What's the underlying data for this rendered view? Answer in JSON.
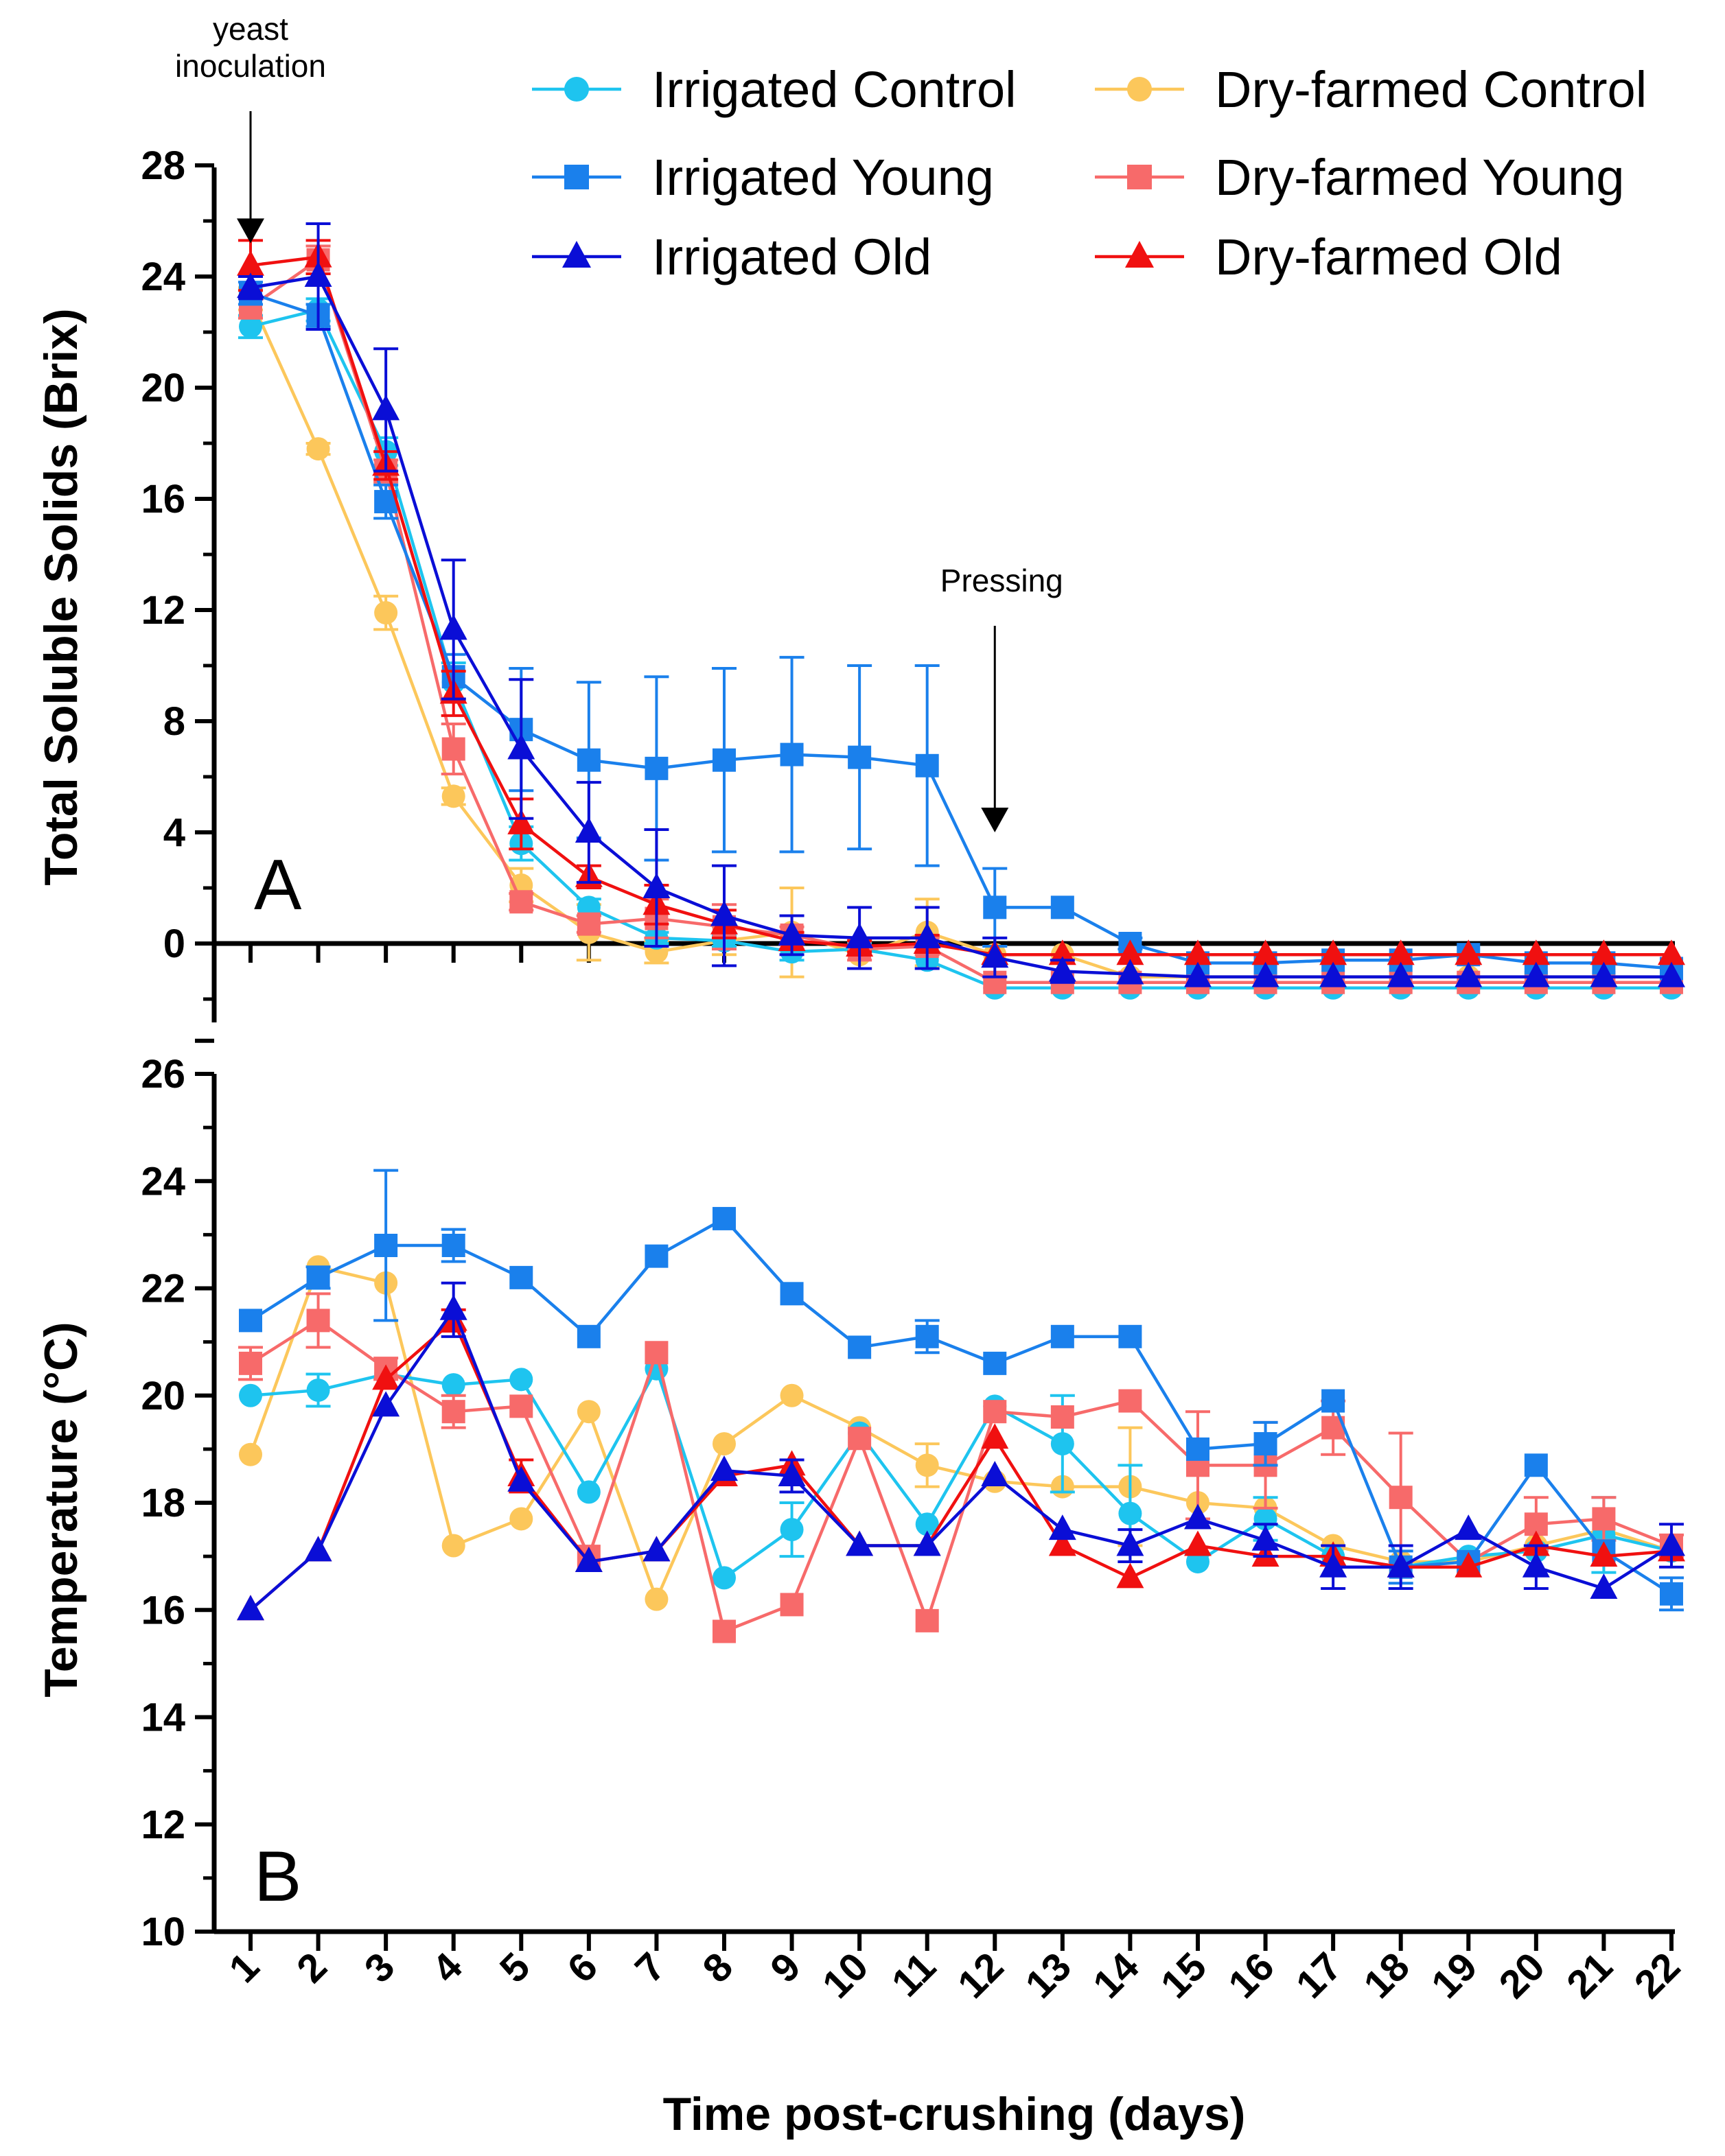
{
  "chart_data": {
    "type": "line",
    "xlabel": "Time post-crushing (days)",
    "x": [
      1,
      2,
      3,
      4,
      5,
      6,
      7,
      8,
      9,
      10,
      11,
      12,
      13,
      14,
      15,
      16,
      17,
      18,
      19,
      20,
      21,
      22
    ],
    "x_tick_labels": [
      "1",
      "2",
      "3",
      "4",
      "5",
      "6",
      "7",
      "8",
      "9",
      "10",
      "11",
      "12",
      "13",
      "14",
      "15",
      "16",
      "17",
      "18",
      "19",
      "20",
      "21",
      "22"
    ],
    "legend": [
      {
        "name": "Irrigated Control",
        "color": "#1ec4ef",
        "marker": "circle"
      },
      {
        "name": "Dry-farmed Control",
        "color": "#fcc75b",
        "marker": "circle"
      },
      {
        "name": "Irrigated Young",
        "color": "#1a80ec",
        "marker": "square"
      },
      {
        "name": "Dry-farmed Young",
        "color": "#f76a6a",
        "marker": "square"
      },
      {
        "name": "Irrigated Old",
        "color": "#0a0ed6",
        "marker": "triangle"
      },
      {
        "name": "Dry-farmed Old",
        "color": "#f01010",
        "marker": "triangle"
      }
    ],
    "panels": [
      {
        "id": "A",
        "label": "A",
        "ylabel": "Total Soluble Solids (Brix)",
        "ylim": [
          -3.5,
          28
        ],
        "y_ticks": [
          "0",
          "4",
          "8",
          "12",
          "16",
          "20",
          "24",
          "28"
        ],
        "annotations": [
          {
            "text_lines": [
              "yeast",
              "inoculation"
            ],
            "x": 1,
            "arrow_to_y": 25.2
          },
          {
            "text_lines": [
              "Pressing"
            ],
            "x": 12,
            "arrow_to_y": 4.0
          }
        ],
        "series": [
          {
            "name": "Irrigated Control",
            "values": [
              22.2,
              22.8,
              17.7,
              9.4,
              3.6,
              1.3,
              0.2,
              0.1,
              -0.3,
              -0.2,
              -0.6,
              -1.6,
              -1.6,
              -1.6,
              -1.6,
              -1.6,
              -1.6,
              -1.6,
              -1.6,
              -1.6,
              -1.6,
              -1.6
            ],
            "errors": [
              0.4,
              0.4,
              0.5,
              0.7,
              0.6,
              0.3,
              0.2,
              0.2,
              0.3,
              0.2,
              0.1,
              0.1,
              0.1,
              0.1,
              0.1,
              0.1,
              0.1,
              0.1,
              0.1,
              0.1,
              0.1,
              0.1
            ]
          },
          {
            "name": "Dry-farmed Control",
            "values": [
              23.2,
              17.8,
              11.9,
              5.3,
              2.1,
              0.4,
              -0.3,
              0.1,
              0.4,
              -0.4,
              0.4,
              -0.4,
              -0.4,
              -1.2,
              -1.2,
              -1.2,
              -1.2,
              -1.2,
              -1.2,
              -1.2,
              -1.2,
              -1.2
            ],
            "errors": [
              0.4,
              0.2,
              0.6,
              0.3,
              0.6,
              1.0,
              0.4,
              0.5,
              1.6,
              0.5,
              1.2,
              0.3,
              0.1,
              0.1,
              0.1,
              0.1,
              0.1,
              0.1,
              0.1,
              0.1,
              0.1,
              0.1
            ]
          },
          {
            "name": "Irrigated Young",
            "values": [
              23.4,
              22.6,
              15.9,
              9.6,
              7.7,
              6.6,
              6.3,
              6.6,
              6.8,
              6.7,
              6.4,
              1.3,
              1.3,
              0.0,
              -0.7,
              -0.7,
              -0.6,
              -0.6,
              -0.4,
              -0.7,
              -0.7,
              -0.9
            ],
            "errors": [
              0.4,
              0.4,
              0.6,
              0.8,
              2.2,
              2.8,
              3.3,
              3.3,
              3.5,
              3.3,
              3.6,
              1.4,
              0.1,
              0.2,
              0.1,
              0.1,
              0.1,
              0.1,
              0.1,
              0.1,
              0.1,
              0.1
            ]
          },
          {
            "name": "Dry-farmed Young",
            "values": [
              22.9,
              24.6,
              17.0,
              7.0,
              1.5,
              0.7,
              0.9,
              0.6,
              0.3,
              -0.2,
              -0.1,
              -1.4,
              -1.4,
              -1.4,
              -1.4,
              -1.4,
              -1.4,
              -1.4,
              -1.4,
              -1.4,
              -1.4,
              -1.4
            ],
            "errors": [
              0.4,
              0.5,
              0.4,
              0.9,
              0.3,
              0.3,
              0.7,
              0.8,
              0.3,
              0.4,
              0.3,
              0.1,
              0.1,
              0.1,
              0.1,
              0.1,
              0.1,
              0.1,
              0.1,
              0.1,
              0.1,
              0.1
            ]
          },
          {
            "name": "Irrigated Old",
            "values": [
              23.6,
              24.0,
              19.2,
              11.3,
              7.0,
              4.0,
              2.0,
              1.0,
              0.3,
              0.2,
              0.2,
              -0.5,
              -1.0,
              -1.1,
              -1.2,
              -1.2,
              -1.2,
              -1.2,
              -1.2,
              -1.2,
              -1.2,
              -1.2
            ],
            "errors": [
              0.4,
              1.9,
              2.2,
              2.5,
              2.5,
              1.8,
              2.1,
              1.8,
              0.7,
              1.1,
              1.1,
              0.7,
              0.4,
              0.1,
              0.1,
              0.1,
              0.1,
              0.1,
              0.1,
              0.1,
              0.1,
              0.1
            ]
          },
          {
            "name": "Dry-farmed Old",
            "values": [
              24.4,
              24.7,
              17.2,
              9.0,
              4.3,
              2.4,
              1.4,
              0.7,
              0.1,
              -0.1,
              0.0,
              -0.4,
              -0.4,
              -0.4,
              -0.4,
              -0.4,
              -0.4,
              -0.4,
              -0.4,
              -0.4,
              -0.4,
              -0.4
            ],
            "errors": [
              0.9,
              0.6,
              0.5,
              0.8,
              0.9,
              0.4,
              0.7,
              0.5,
              0.3,
              0.2,
              0.3,
              0.1,
              0.1,
              0.1,
              0.1,
              0.1,
              0.1,
              0.1,
              0.1,
              0.1,
              0.1,
              0.1
            ]
          }
        ]
      },
      {
        "id": "B",
        "label": "B",
        "ylabel": "Temperature (°C)",
        "ylim": [
          10,
          26
        ],
        "y_ticks": [
          "10",
          "12",
          "14",
          "16",
          "18",
          "20",
          "22",
          "24",
          "26"
        ],
        "series": [
          {
            "name": "Irrigated Control",
            "values": [
              20.0,
              20.1,
              20.4,
              20.2,
              20.3,
              18.2,
              20.5,
              16.6,
              17.5,
              19.3,
              17.6,
              19.8,
              19.1,
              17.8,
              16.9,
              17.7,
              17.0,
              16.8,
              17.0,
              17.1,
              17.4,
              17.1
            ],
            "errors": [
              0.1,
              0.3,
              0.1,
              0.1,
              0.1,
              0.1,
              0.1,
              0.1,
              0.5,
              0.1,
              0.1,
              0.1,
              0.9,
              0.9,
              0.1,
              0.4,
              0.1,
              0.1,
              0.1,
              0.1,
              0.7,
              0.1
            ]
          },
          {
            "name": "Dry-farmed Control",
            "values": [
              18.9,
              22.4,
              22.1,
              17.2,
              17.7,
              19.7,
              16.2,
              19.1,
              20.0,
              19.4,
              18.7,
              18.4,
              18.3,
              18.3,
              18.0,
              17.9,
              17.2,
              16.9,
              16.9,
              17.2,
              17.5,
              17.1
            ],
            "errors": [
              0.1,
              0.1,
              0.1,
              0.1,
              0.1,
              0.1,
              0.1,
              0.1,
              0.1,
              0.1,
              0.4,
              0.1,
              0.1,
              1.1,
              0.1,
              0.1,
              0.1,
              0.1,
              0.1,
              0.1,
              0.1,
              0.1
            ]
          },
          {
            "name": "Irrigated Young",
            "values": [
              21.4,
              22.2,
              22.8,
              22.8,
              22.2,
              21.1,
              22.6,
              23.3,
              21.9,
              20.9,
              21.1,
              20.6,
              21.1,
              21.1,
              19.0,
              19.1,
              19.9,
              16.8,
              16.9,
              18.7,
              17.1,
              16.3
            ],
            "errors": [
              0.1,
              0.2,
              1.4,
              0.3,
              0.1,
              0.1,
              0.1,
              0.1,
              0.1,
              0.1,
              0.3,
              0.1,
              0.1,
              0.1,
              0.1,
              0.4,
              0.1,
              0.3,
              0.1,
              0.1,
              0.1,
              0.3
            ]
          },
          {
            "name": "Dry-farmed Young",
            "values": [
              20.6,
              21.4,
              20.5,
              19.7,
              19.8,
              17.0,
              20.8,
              15.6,
              16.1,
              19.2,
              15.8,
              19.7,
              19.6,
              19.9,
              18.7,
              18.7,
              19.4,
              18.1,
              16.9,
              17.6,
              17.7,
              17.2
            ],
            "errors": [
              0.3,
              0.5,
              0.2,
              0.3,
              0.1,
              0.1,
              0.1,
              0.1,
              0.1,
              0.1,
              0.1,
              0.1,
              0.1,
              0.1,
              1.0,
              0.8,
              0.5,
              1.2,
              0.1,
              0.5,
              0.4,
              0.2
            ]
          },
          {
            "name": "Irrigated Old",
            "values": [
              16.0,
              17.1,
              19.8,
              21.6,
              18.4,
              16.9,
              17.1,
              18.6,
              18.5,
              17.2,
              17.2,
              18.5,
              17.5,
              17.2,
              17.7,
              17.3,
              16.8,
              16.8,
              17.5,
              16.8,
              16.4,
              17.2
            ],
            "errors": [
              0.1,
              0.1,
              0.1,
              0.5,
              0.1,
              0.1,
              0.1,
              0.1,
              0.3,
              0.1,
              0.1,
              0.1,
              0.1,
              0.3,
              0.1,
              0.3,
              0.4,
              0.4,
              0.1,
              0.4,
              0.1,
              0.4
            ]
          },
          {
            "name": "Dry-farmed Old",
            "values": [
              16.0,
              17.1,
              20.3,
              21.4,
              18.5,
              16.9,
              17.1,
              18.5,
              18.7,
              17.2,
              17.2,
              19.2,
              17.2,
              16.6,
              17.2,
              17.0,
              17.0,
              16.8,
              16.8,
              17.2,
              17.0,
              17.1
            ],
            "errors": [
              0.1,
              0.1,
              0.1,
              0.2,
              0.3,
              0.1,
              0.1,
              0.1,
              0.1,
              0.1,
              0.1,
              0.1,
              0.1,
              0.1,
              0.1,
              0.1,
              0.1,
              0.1,
              0.1,
              0.1,
              0.1,
              0.1
            ]
          }
        ]
      }
    ]
  }
}
